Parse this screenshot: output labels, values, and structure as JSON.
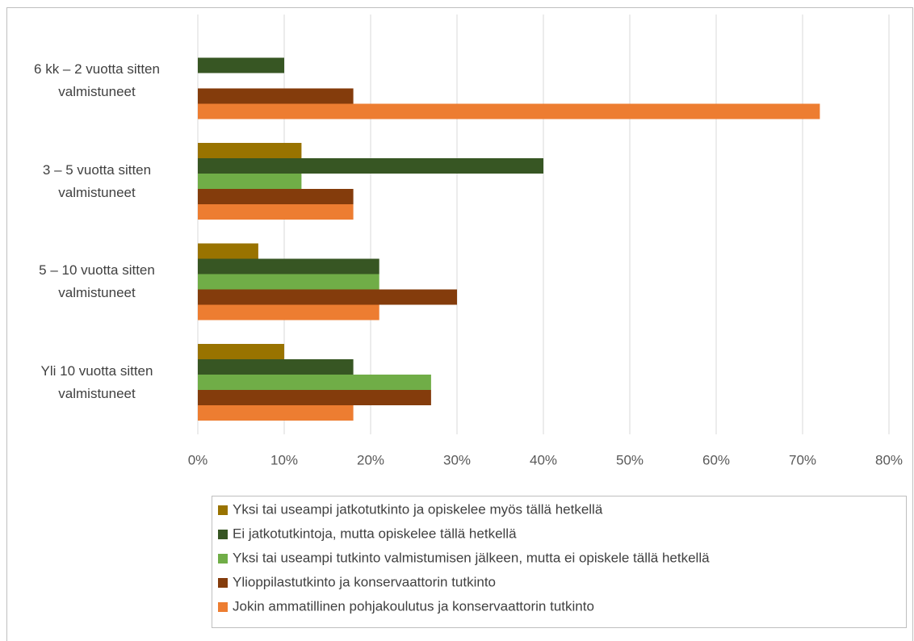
{
  "chart_data": {
    "type": "bar",
    "orientation": "horizontal",
    "categories": [
      "6 kk – 2 vuotta sitten valmistuneet",
      "3 – 5 vuotta sitten valmistuneet",
      "5 – 10 vuotta sitten valmistuneet",
      "Yli 10 vuotta sitten valmistuneet"
    ],
    "series": [
      {
        "name": "Yksi tai useampi jatkotutkinto ja opiskelee myös tällä hetkellä",
        "color": "#997300",
        "values": [
          0,
          12,
          7,
          10
        ]
      },
      {
        "name": "Ei jatkotutkintoja, mutta opiskelee tällä hetkellä",
        "color": "#375623",
        "values": [
          10,
          40,
          21,
          18
        ]
      },
      {
        "name": "Yksi tai useampi tutkinto valmistumisen jälkeen, mutta ei opiskele tällä hetkellä",
        "color": "#70ad47",
        "values": [
          0,
          12,
          21,
          27
        ]
      },
      {
        "name": "Ylioppilastutkinto ja konservaattorin tutkinto",
        "color": "#843c0c",
        "values": [
          18,
          18,
          30,
          27
        ]
      },
      {
        "name": "Jokin ammatillinen pohjakoulutus ja konservaattorin tutkinto",
        "color": "#ed7d31",
        "values": [
          72,
          18,
          21,
          18
        ]
      }
    ],
    "xlim": [
      0,
      80
    ],
    "xticks": [
      {
        "value": 0,
        "label": "0%"
      },
      {
        "value": 10,
        "label": "10%"
      },
      {
        "value": 20,
        "label": "20%"
      },
      {
        "value": 30,
        "label": "30%"
      },
      {
        "value": 40,
        "label": "40%"
      },
      {
        "value": 50,
        "label": "50%"
      },
      {
        "value": 60,
        "label": "60%"
      },
      {
        "value": 70,
        "label": "70%"
      },
      {
        "value": 80,
        "label": "80%"
      }
    ],
    "grid": true,
    "legend": "bottom"
  }
}
